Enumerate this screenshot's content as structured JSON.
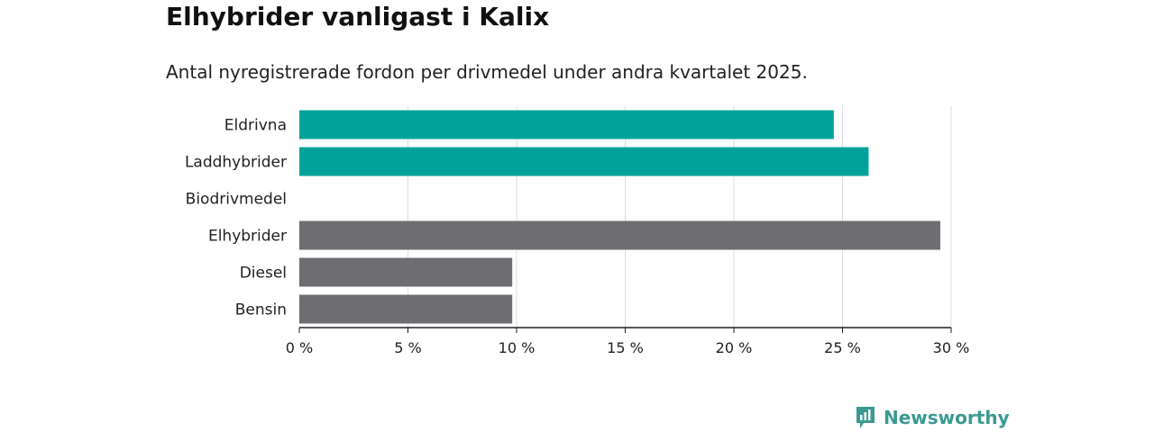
{
  "title": "Elhybrider vanligast i Kalix",
  "subtitle": "Antal nyregistrerade fordon per drivmedel under andra kvartalet 2025.",
  "brand": {
    "name": "Newsworthy",
    "icon": "newsworthy-logo-icon",
    "color": "#3a9a92"
  },
  "chart_data": {
    "type": "bar",
    "orientation": "horizontal",
    "categories": [
      "Eldrivna",
      "Laddhybrider",
      "Biodrivmedel",
      "Elhybrider",
      "Diesel",
      "Bensin"
    ],
    "values": [
      24.6,
      26.2,
      0,
      29.5,
      9.8,
      9.8
    ],
    "colors": [
      "#00a39a",
      "#00a39a",
      "#00a39a",
      "#6e6d72",
      "#6e6d72",
      "#6e6d72"
    ],
    "xlim": [
      0,
      30
    ],
    "ticks": [
      0,
      5,
      10,
      15,
      20,
      25,
      30
    ],
    "tick_labels": [
      "0 %",
      "5 %",
      "10 %",
      "15 %",
      "20 %",
      "25 %",
      "30 %"
    ],
    "grid": true,
    "xlabel": "",
    "ylabel": ""
  }
}
